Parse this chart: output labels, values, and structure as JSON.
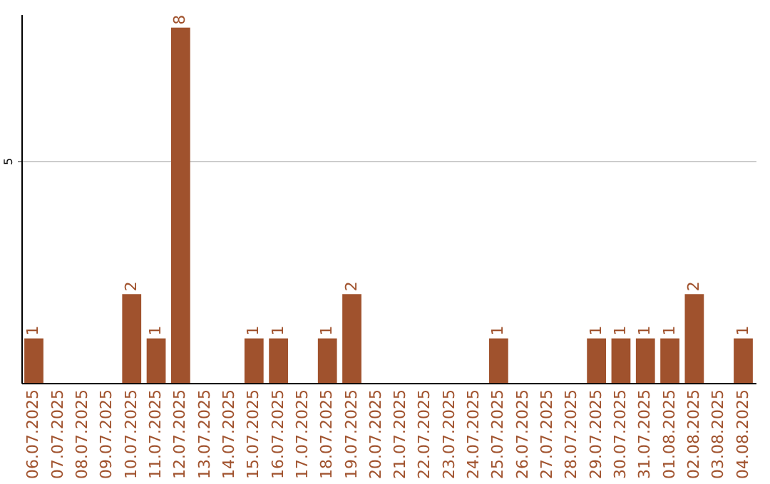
{
  "chart_data": {
    "type": "bar",
    "categories": [
      "06.07.2025",
      "07.07.2025",
      "08.07.2025",
      "09.07.2025",
      "10.07.2025",
      "11.07.2025",
      "12.07.2025",
      "13.07.2025",
      "14.07.2025",
      "15.07.2025",
      "16.07.2025",
      "17.07.2025",
      "18.07.2025",
      "19.07.2025",
      "20.07.2025",
      "21.07.2025",
      "22.07.2025",
      "23.07.2025",
      "24.07.2025",
      "25.07.2025",
      "26.07.2025",
      "27.07.2025",
      "28.07.2025",
      "29.07.2025",
      "30.07.2025",
      "31.07.2025",
      "01.08.2025",
      "02.08.2025",
      "03.08.2025",
      "04.08.2025"
    ],
    "values": [
      1,
      0,
      0,
      0,
      2,
      1,
      8,
      0,
      0,
      1,
      1,
      0,
      1,
      2,
      0,
      0,
      0,
      0,
      0,
      1,
      0,
      0,
      0,
      1,
      1,
      1,
      1,
      2,
      0,
      1
    ],
    "value_labels": [
      "1",
      null,
      null,
      null,
      "2",
      "1",
      "8",
      null,
      null,
      "1",
      "1",
      null,
      "1",
      "2",
      null,
      null,
      null,
      null,
      null,
      "1",
      null,
      null,
      null,
      "1",
      "1",
      "1",
      "1",
      "2",
      null,
      "1"
    ],
    "color": "#a0522d",
    "ylim": [
      0,
      8.3
    ],
    "yticks": [
      5
    ],
    "grid": "y"
  }
}
